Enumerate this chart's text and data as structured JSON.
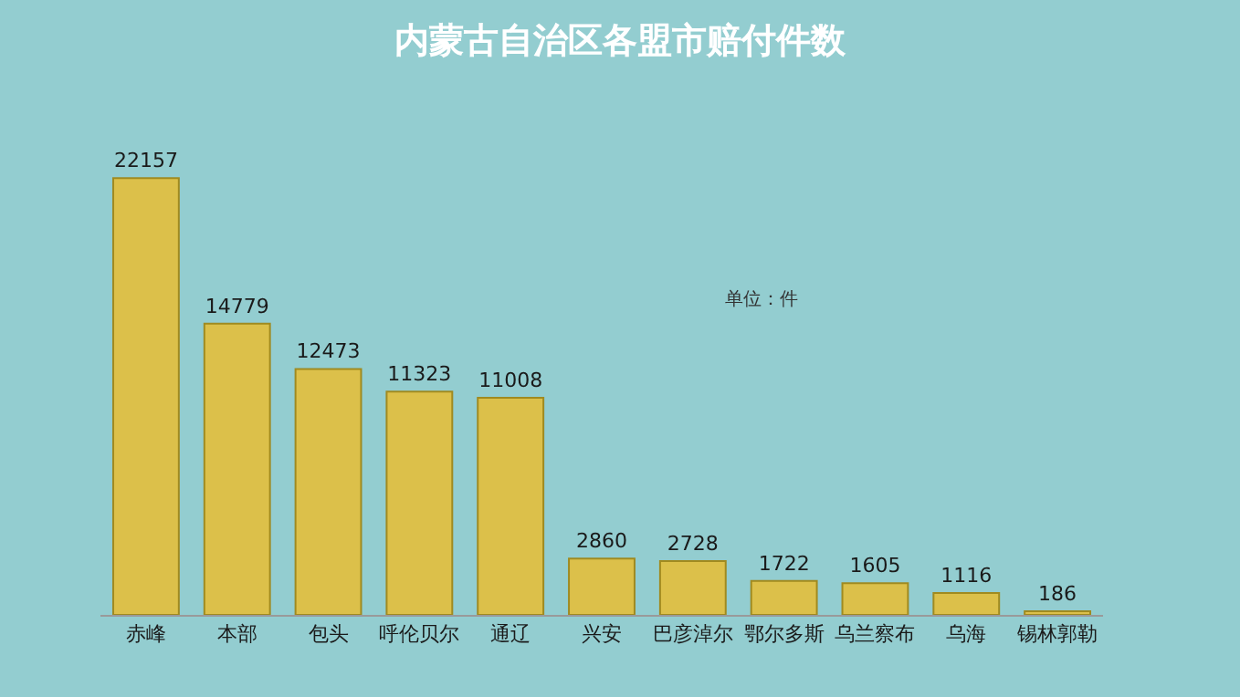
{
  "chart_data": {
    "type": "bar",
    "title": "内蒙古自治区各盟市赔付件数",
    "categories": [
      "赤峰",
      "本部",
      "包头",
      "呼伦贝尔",
      "通辽",
      "兴安",
      "巴彦淖尔",
      "鄂尔多斯",
      "乌兰察布",
      "乌海",
      "锡林郭勒"
    ],
    "values": [
      22157,
      14779,
      12473,
      11323,
      11008,
      2860,
      2728,
      1722,
      1605,
      1116,
      186
    ],
    "color": "#dcc04a",
    "data_labels": true,
    "annotations": [
      "单位：件"
    ]
  }
}
